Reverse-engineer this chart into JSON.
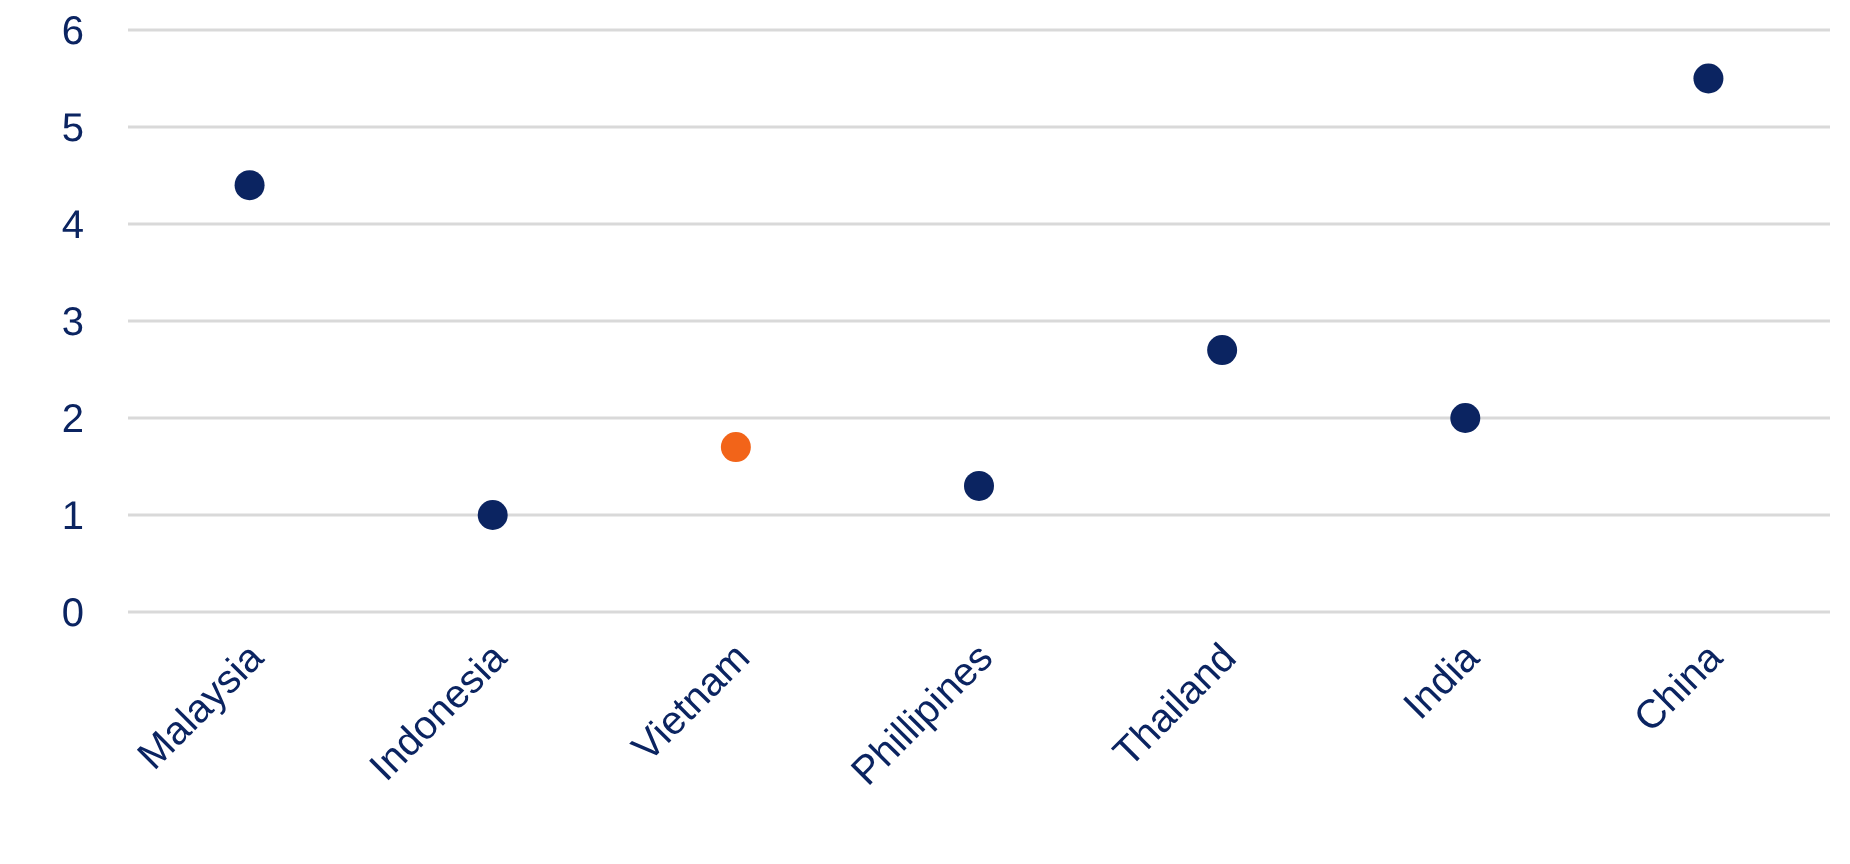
{
  "chart_data": {
    "type": "scatter",
    "categories": [
      "Malaysia",
      "Indonesia",
      "Vietnam",
      "Phillipines",
      "Thailand",
      "India",
      "China"
    ],
    "values": [
      4.4,
      1.0,
      1.7,
      1.3,
      2.7,
      2.0,
      5.5
    ],
    "colors": [
      "#0b2461",
      "#0b2461",
      "#f26419",
      "#0b2461",
      "#0b2461",
      "#0b2461",
      "#0b2461"
    ],
    "ylim": [
      0,
      6
    ],
    "yticks": [
      0,
      1,
      2,
      3,
      4,
      5,
      6
    ],
    "grid": "y",
    "marker": "circle"
  }
}
